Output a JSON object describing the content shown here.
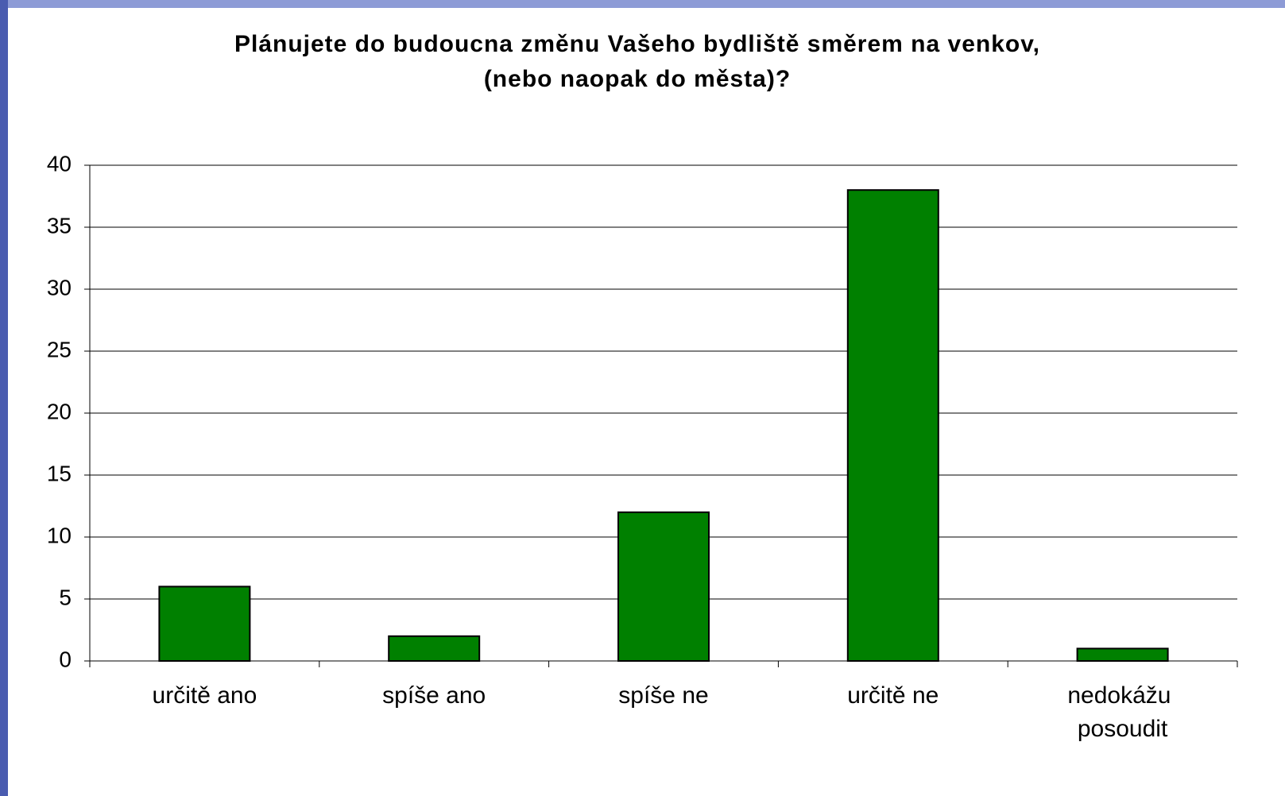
{
  "chart_data": {
    "type": "bar",
    "title": [
      "Plánujete do budoucna změnu Vašeho bydliště směrem na venkov,",
      "(nebo naopak do města)?"
    ],
    "categories": [
      "určitě ano",
      "spíše ano",
      "spíše ne",
      "určitě ne",
      "nedokážu posoudit"
    ],
    "values": [
      6,
      2,
      12,
      38,
      1
    ],
    "color": "#008000",
    "ylim": [
      0,
      40
    ],
    "yticks": [
      0,
      5,
      10,
      15,
      20,
      25,
      30,
      35,
      40
    ],
    "grid": true
  }
}
